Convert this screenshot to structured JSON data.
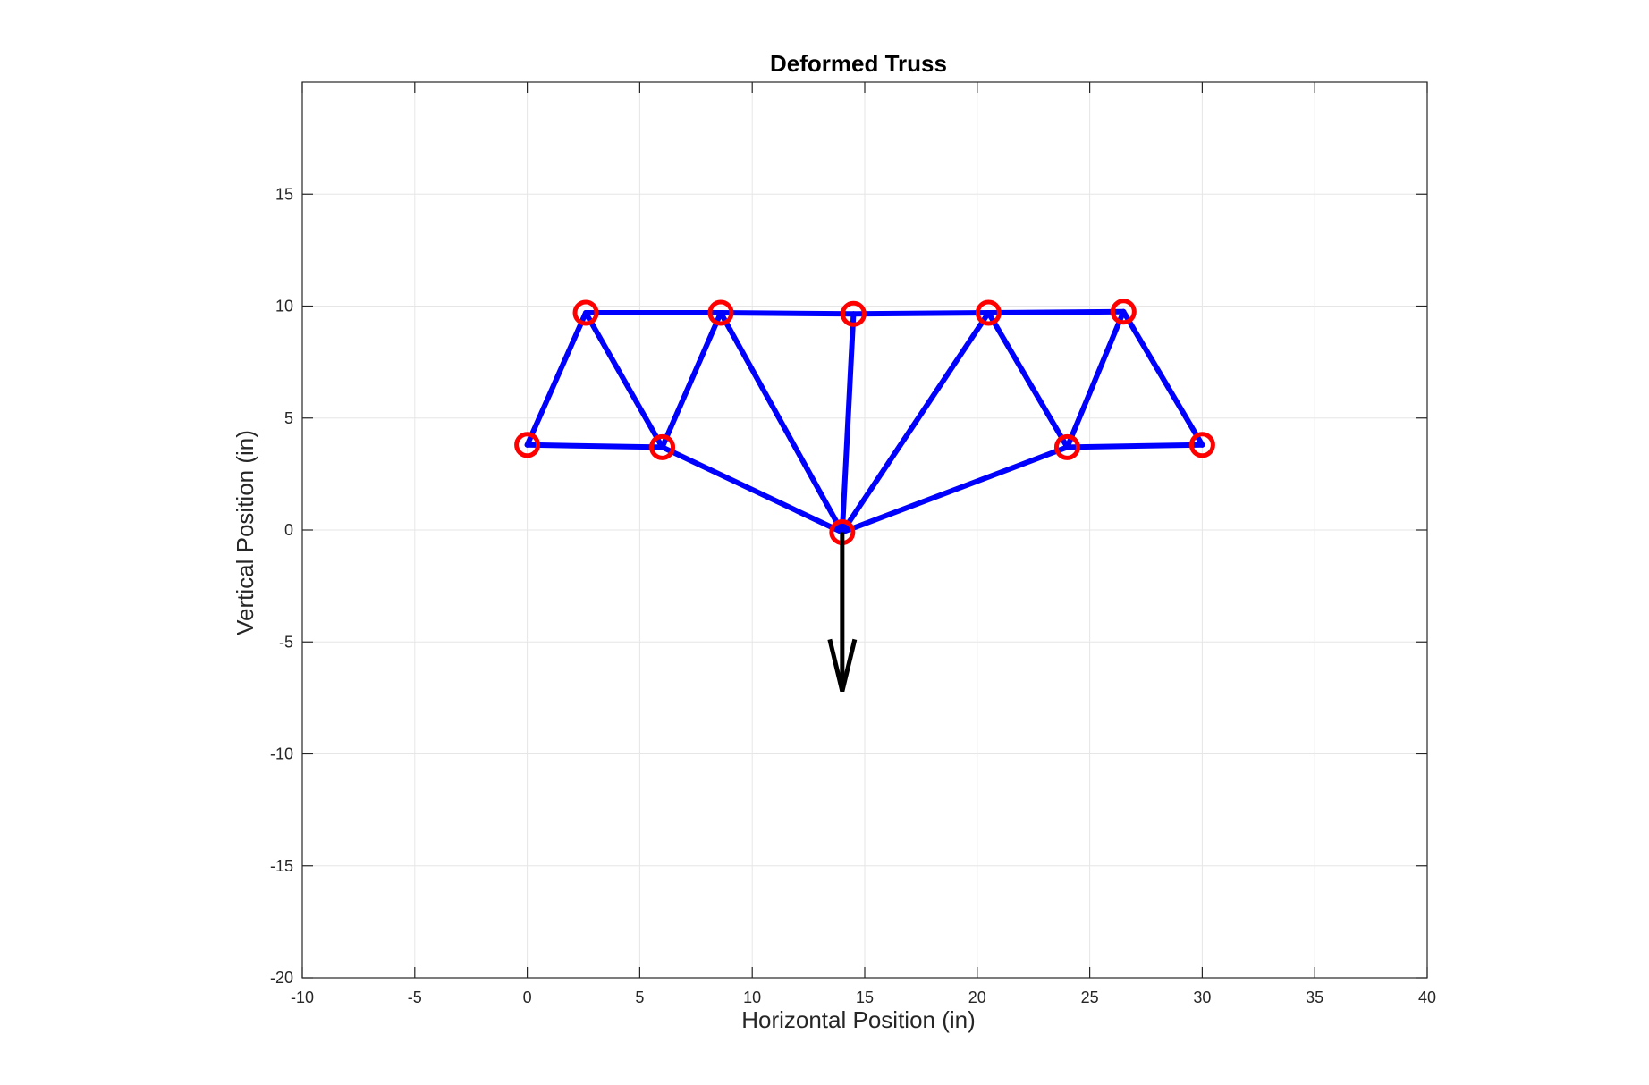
{
  "chart_data": {
    "type": "line",
    "title": "Deformed Truss",
    "xlabel": "Horizontal Position (in)",
    "ylabel": "Vertical Position (in)",
    "xlim": [
      -10,
      40
    ],
    "ylim": [
      -20,
      20
    ],
    "xticks": [
      -10,
      -5,
      0,
      5,
      10,
      15,
      20,
      25,
      30,
      35,
      40
    ],
    "yticks": [
      -20,
      -15,
      -10,
      -5,
      0,
      5,
      10,
      15
    ],
    "grid": true,
    "nodes": [
      {
        "id": 1,
        "x": 0,
        "y": 3.8
      },
      {
        "id": 2,
        "x": 2.6,
        "y": 9.7
      },
      {
        "id": 3,
        "x": 6.0,
        "y": 3.7
      },
      {
        "id": 4,
        "x": 8.6,
        "y": 9.7
      },
      {
        "id": 5,
        "x": 14.0,
        "y": -0.1
      },
      {
        "id": 6,
        "x": 14.5,
        "y": 9.65
      },
      {
        "id": 7,
        "x": 20.5,
        "y": 9.7
      },
      {
        "id": 8,
        "x": 24.0,
        "y": 3.7
      },
      {
        "id": 9,
        "x": 26.5,
        "y": 9.75
      },
      {
        "id": 10,
        "x": 30.0,
        "y": 3.8
      }
    ],
    "members": [
      [
        1,
        2
      ],
      [
        1,
        3
      ],
      [
        2,
        3
      ],
      [
        2,
        4
      ],
      [
        3,
        4
      ],
      [
        3,
        5
      ],
      [
        4,
        5
      ],
      [
        4,
        6
      ],
      [
        5,
        6
      ],
      [
        5,
        7
      ],
      [
        5,
        8
      ],
      [
        6,
        7
      ],
      [
        7,
        8
      ],
      [
        7,
        9
      ],
      [
        8,
        9
      ],
      [
        8,
        10
      ],
      [
        9,
        10
      ]
    ],
    "load": {
      "node": 5,
      "x": 14.0,
      "y_start": -0.1,
      "y_end": -7.2
    },
    "colors": {
      "members": "#0000ff",
      "nodes": "#ff0000",
      "load_arrow": "#000000",
      "grid": "#e6e6e6",
      "axes": "#262626"
    }
  }
}
